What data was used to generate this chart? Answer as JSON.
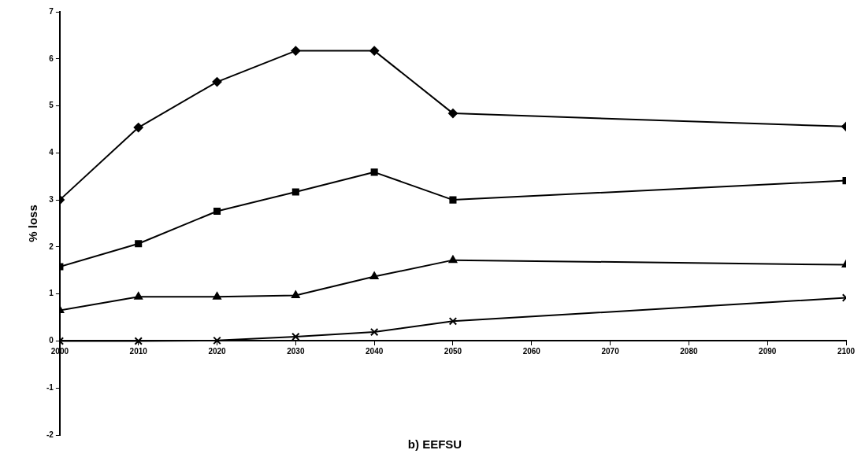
{
  "chart_data": {
    "type": "line",
    "title": "b) EEFSU",
    "ylabel": "% loss",
    "x": [
      2000,
      2010,
      2020,
      2030,
      2040,
      2050,
      2100
    ],
    "series": [
      {
        "color": "#000000",
        "marker": "diamond",
        "values": [
          3.0,
          4.54,
          5.51,
          6.17,
          6.17,
          4.84,
          4.56
        ]
      },
      {
        "color": "#000000",
        "marker": "square",
        "values": [
          1.58,
          2.07,
          2.76,
          3.17,
          3.59,
          3.0,
          3.41
        ]
      },
      {
        "color": "#000000",
        "marker": "triangle",
        "values": [
          0.65,
          0.94,
          0.94,
          0.97,
          1.37,
          1.72,
          1.62
        ]
      },
      {
        "color": "#000000",
        "marker": "cross",
        "values": [
          0,
          0,
          0.01,
          0.09,
          0.19,
          0.42,
          0.92
        ]
      }
    ],
    "xlim": [
      2000,
      2100
    ],
    "xticks": [
      2000,
      2010,
      2020,
      2030,
      2040,
      2050,
      2060,
      2070,
      2080,
      2090,
      2100
    ],
    "ylim": [
      -2,
      7
    ],
    "yticks": [
      -2,
      -1,
      0,
      1,
      2,
      3,
      4,
      5,
      6,
      7
    ],
    "grid": false,
    "legend": false,
    "line_style": "solid"
  }
}
